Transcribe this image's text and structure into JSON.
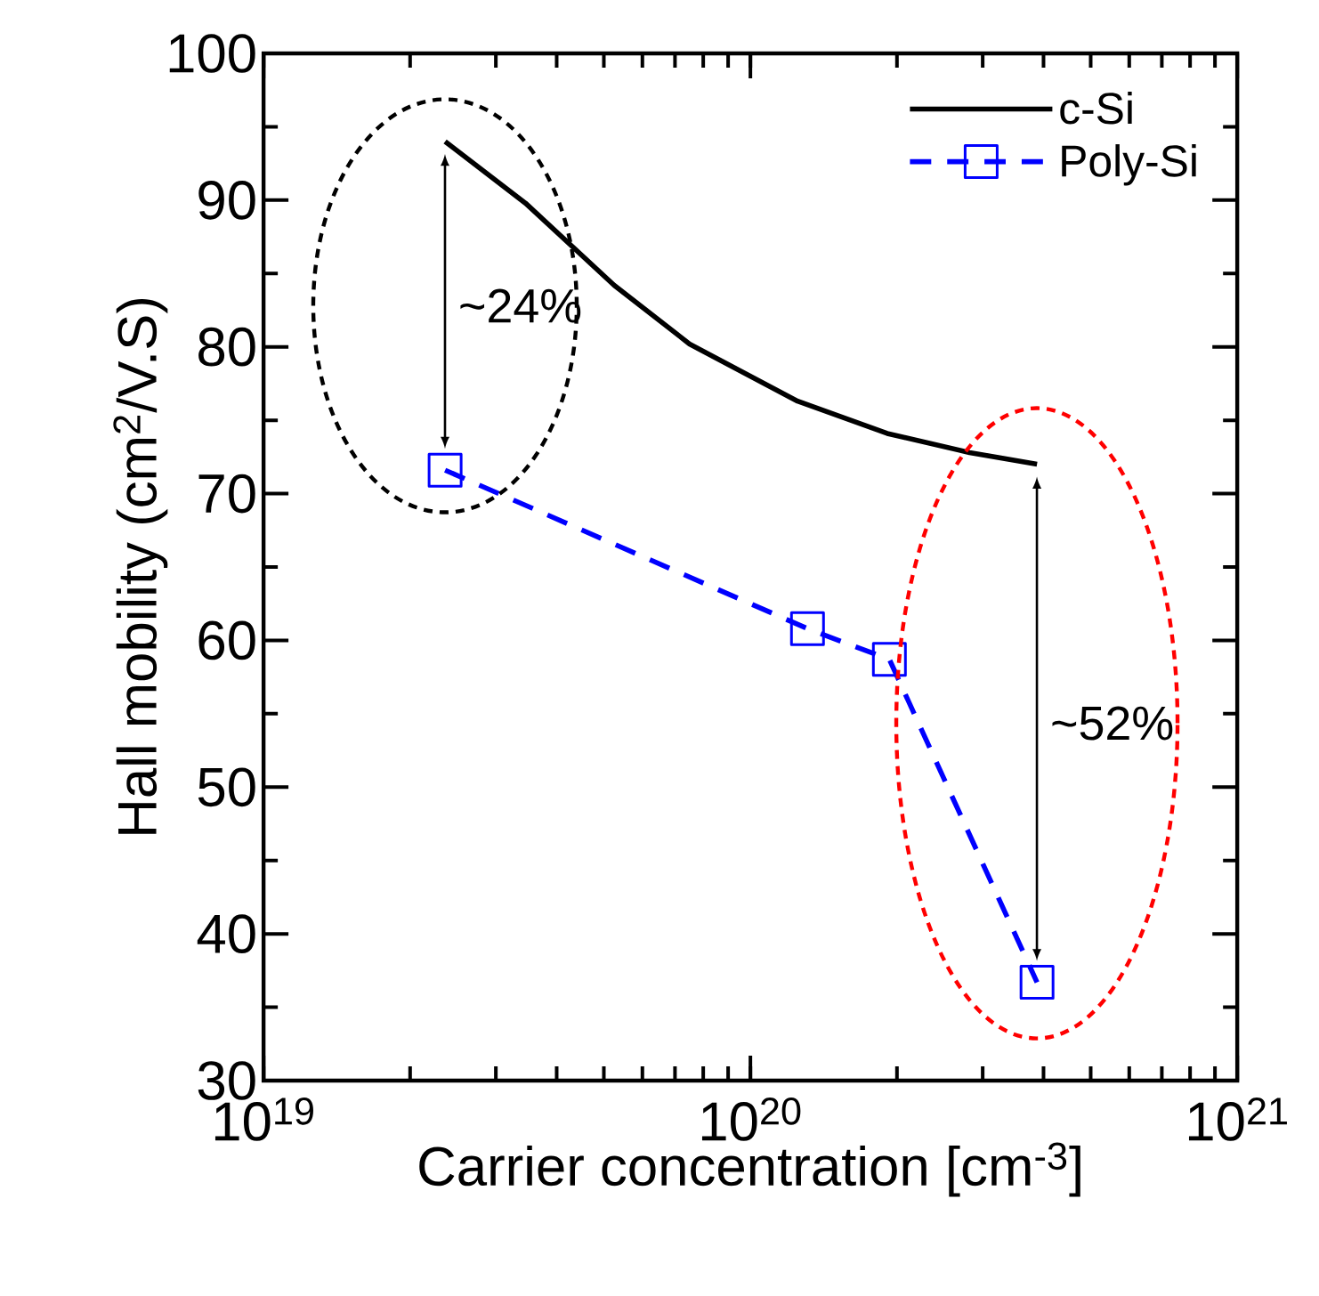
{
  "chart_data": {
    "type": "line",
    "xlabel": "Carrier concentration [cm$^{-3}$]",
    "ylabel": "Hall mobility (cm$^{2}$/V.S)",
    "log": "x",
    "xlim": [
      1e+19,
      1e+21
    ],
    "xticks": [
      {
        "value": 1e+19,
        "label": "10$^{19}$"
      },
      {
        "value": 1e+20,
        "label": "10$^{20}$"
      },
      {
        "value": 1e+21,
        "label": "10$^{21}$"
      }
    ],
    "ylim": [
      30,
      100
    ],
    "yticks": [
      30,
      40,
      50,
      60,
      70,
      80,
      90,
      100
    ],
    "legend": "top right",
    "grid": false,
    "series": [
      {
        "name": "c-Si",
        "color": "#000000",
        "marker": "none",
        "line_style": "solid",
        "x": [
          2.36e+19,
          3.45e+19,
          5.25e+19,
          7.5e+19,
          1.25e+20,
          1.91e+20,
          2.82e+20,
          3.88e+20
        ],
        "values": [
          94.0,
          89.8,
          84.2,
          80.2,
          76.3,
          74.1,
          72.8,
          72.0
        ]
      },
      {
        "name": "Poly-Si",
        "color": "#0000ff",
        "marker": "square",
        "line_style": "dashed",
        "x": [
          2.36e+19,
          1.31e+20,
          1.93e+20,
          3.88e+20
        ],
        "values": [
          71.6,
          60.8,
          58.7,
          36.7
        ]
      }
    ],
    "annotations": [
      "~24%",
      "~52%"
    ]
  }
}
